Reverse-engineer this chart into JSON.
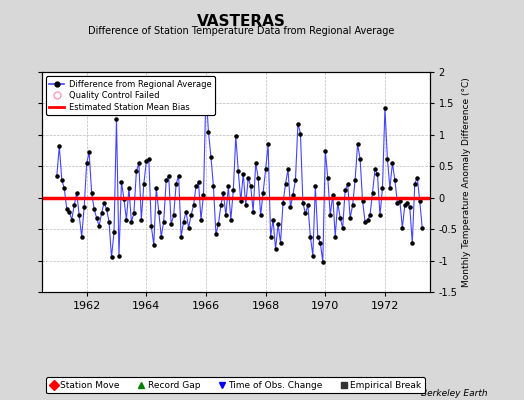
{
  "title": "VASTERAS",
  "subtitle": "Difference of Station Temperature Data from Regional Average",
  "ylabel": "Monthly Temperature Anomaly Difference (°C)",
  "bias": 0.0,
  "ylim": [
    -1.5,
    2.0
  ],
  "xlim": [
    1960.5,
    1973.5
  ],
  "xticks": [
    1962,
    1964,
    1966,
    1968,
    1970,
    1972
  ],
  "background_color": "#d8d8d8",
  "plot_bg_color": "#ffffff",
  "line_color": "#4444ff",
  "dot_color": "#000000",
  "bias_color": "#ff0000",
  "watermark": "Berkeley Earth",
  "months": [
    1961.0,
    1961.083,
    1961.167,
    1961.25,
    1961.333,
    1961.417,
    1961.5,
    1961.583,
    1961.667,
    1961.75,
    1961.833,
    1961.917,
    1962.0,
    1962.083,
    1962.167,
    1962.25,
    1962.333,
    1962.417,
    1962.5,
    1962.583,
    1962.667,
    1962.75,
    1962.833,
    1962.917,
    1963.0,
    1963.083,
    1963.167,
    1963.25,
    1963.333,
    1963.417,
    1963.5,
    1963.583,
    1963.667,
    1963.75,
    1963.833,
    1963.917,
    1964.0,
    1964.083,
    1964.167,
    1964.25,
    1964.333,
    1964.417,
    1964.5,
    1964.583,
    1964.667,
    1964.75,
    1964.833,
    1964.917,
    1965.0,
    1965.083,
    1965.167,
    1965.25,
    1965.333,
    1965.417,
    1965.5,
    1965.583,
    1965.667,
    1965.75,
    1965.833,
    1965.917,
    1966.0,
    1966.083,
    1966.167,
    1966.25,
    1966.333,
    1966.417,
    1966.5,
    1966.583,
    1966.667,
    1966.75,
    1966.833,
    1966.917,
    1967.0,
    1967.083,
    1967.167,
    1967.25,
    1967.333,
    1967.417,
    1967.5,
    1967.583,
    1967.667,
    1967.75,
    1967.833,
    1967.917,
    1968.0,
    1968.083,
    1968.167,
    1968.25,
    1968.333,
    1968.417,
    1968.5,
    1968.583,
    1968.667,
    1968.75,
    1968.833,
    1968.917,
    1969.0,
    1969.083,
    1969.167,
    1969.25,
    1969.333,
    1969.417,
    1969.5,
    1969.583,
    1969.667,
    1969.75,
    1969.833,
    1969.917,
    1970.0,
    1970.083,
    1970.167,
    1970.25,
    1970.333,
    1970.417,
    1970.5,
    1970.583,
    1970.667,
    1970.75,
    1970.833,
    1970.917,
    1971.0,
    1971.083,
    1971.167,
    1971.25,
    1971.333,
    1971.417,
    1971.5,
    1971.583,
    1971.667,
    1971.75,
    1971.833,
    1971.917,
    1972.0,
    1972.083,
    1972.167,
    1972.25,
    1972.333,
    1972.417,
    1972.5,
    1972.583,
    1972.667,
    1972.75,
    1972.833,
    1972.917,
    1973.0,
    1973.083,
    1973.167,
    1973.25
  ],
  "values": [
    0.35,
    0.82,
    0.28,
    0.15,
    -0.18,
    -0.22,
    -0.35,
    -0.12,
    0.08,
    -0.28,
    -0.62,
    -0.15,
    0.55,
    0.72,
    0.08,
    -0.18,
    -0.32,
    -0.45,
    -0.25,
    -0.08,
    -0.18,
    -0.38,
    -0.95,
    -0.55,
    1.25,
    -0.92,
    0.25,
    -0.02,
    -0.35,
    0.15,
    -0.38,
    -0.25,
    0.42,
    0.55,
    -0.35,
    0.22,
    0.58,
    0.62,
    -0.45,
    -0.75,
    0.15,
    -0.22,
    -0.62,
    -0.38,
    0.28,
    0.35,
    -0.42,
    -0.28,
    0.22,
    0.35,
    -0.62,
    -0.38,
    -0.22,
    -0.48,
    -0.28,
    -0.12,
    0.18,
    0.25,
    -0.35,
    0.05,
    1.7,
    1.05,
    0.65,
    0.18,
    -0.58,
    -0.42,
    -0.12,
    0.08,
    -0.28,
    0.18,
    -0.35,
    0.12,
    0.98,
    0.42,
    -0.05,
    0.38,
    -0.12,
    0.32,
    0.18,
    -0.22,
    0.55,
    0.32,
    -0.28,
    0.08,
    0.45,
    0.85,
    -0.62,
    -0.35,
    -0.82,
    -0.42,
    -0.72,
    -0.08,
    0.22,
    0.45,
    -0.15,
    0.05,
    0.28,
    1.18,
    1.02,
    -0.08,
    -0.25,
    -0.12,
    -0.62,
    -0.92,
    0.18,
    -0.62,
    -0.72,
    -1.02,
    0.75,
    0.32,
    -0.28,
    0.05,
    -0.62,
    -0.08,
    -0.32,
    -0.48,
    0.12,
    0.22,
    -0.32,
    -0.12,
    0.28,
    0.85,
    0.62,
    -0.05,
    -0.38,
    -0.35,
    -0.28,
    0.08,
    0.45,
    0.38,
    -0.28,
    0.15,
    1.42,
    0.62,
    0.15,
    0.55,
    0.28,
    -0.08,
    -0.05,
    -0.48,
    -0.12,
    -0.08,
    -0.15,
    -0.72,
    0.22,
    0.32,
    -0.05,
    -0.48
  ]
}
